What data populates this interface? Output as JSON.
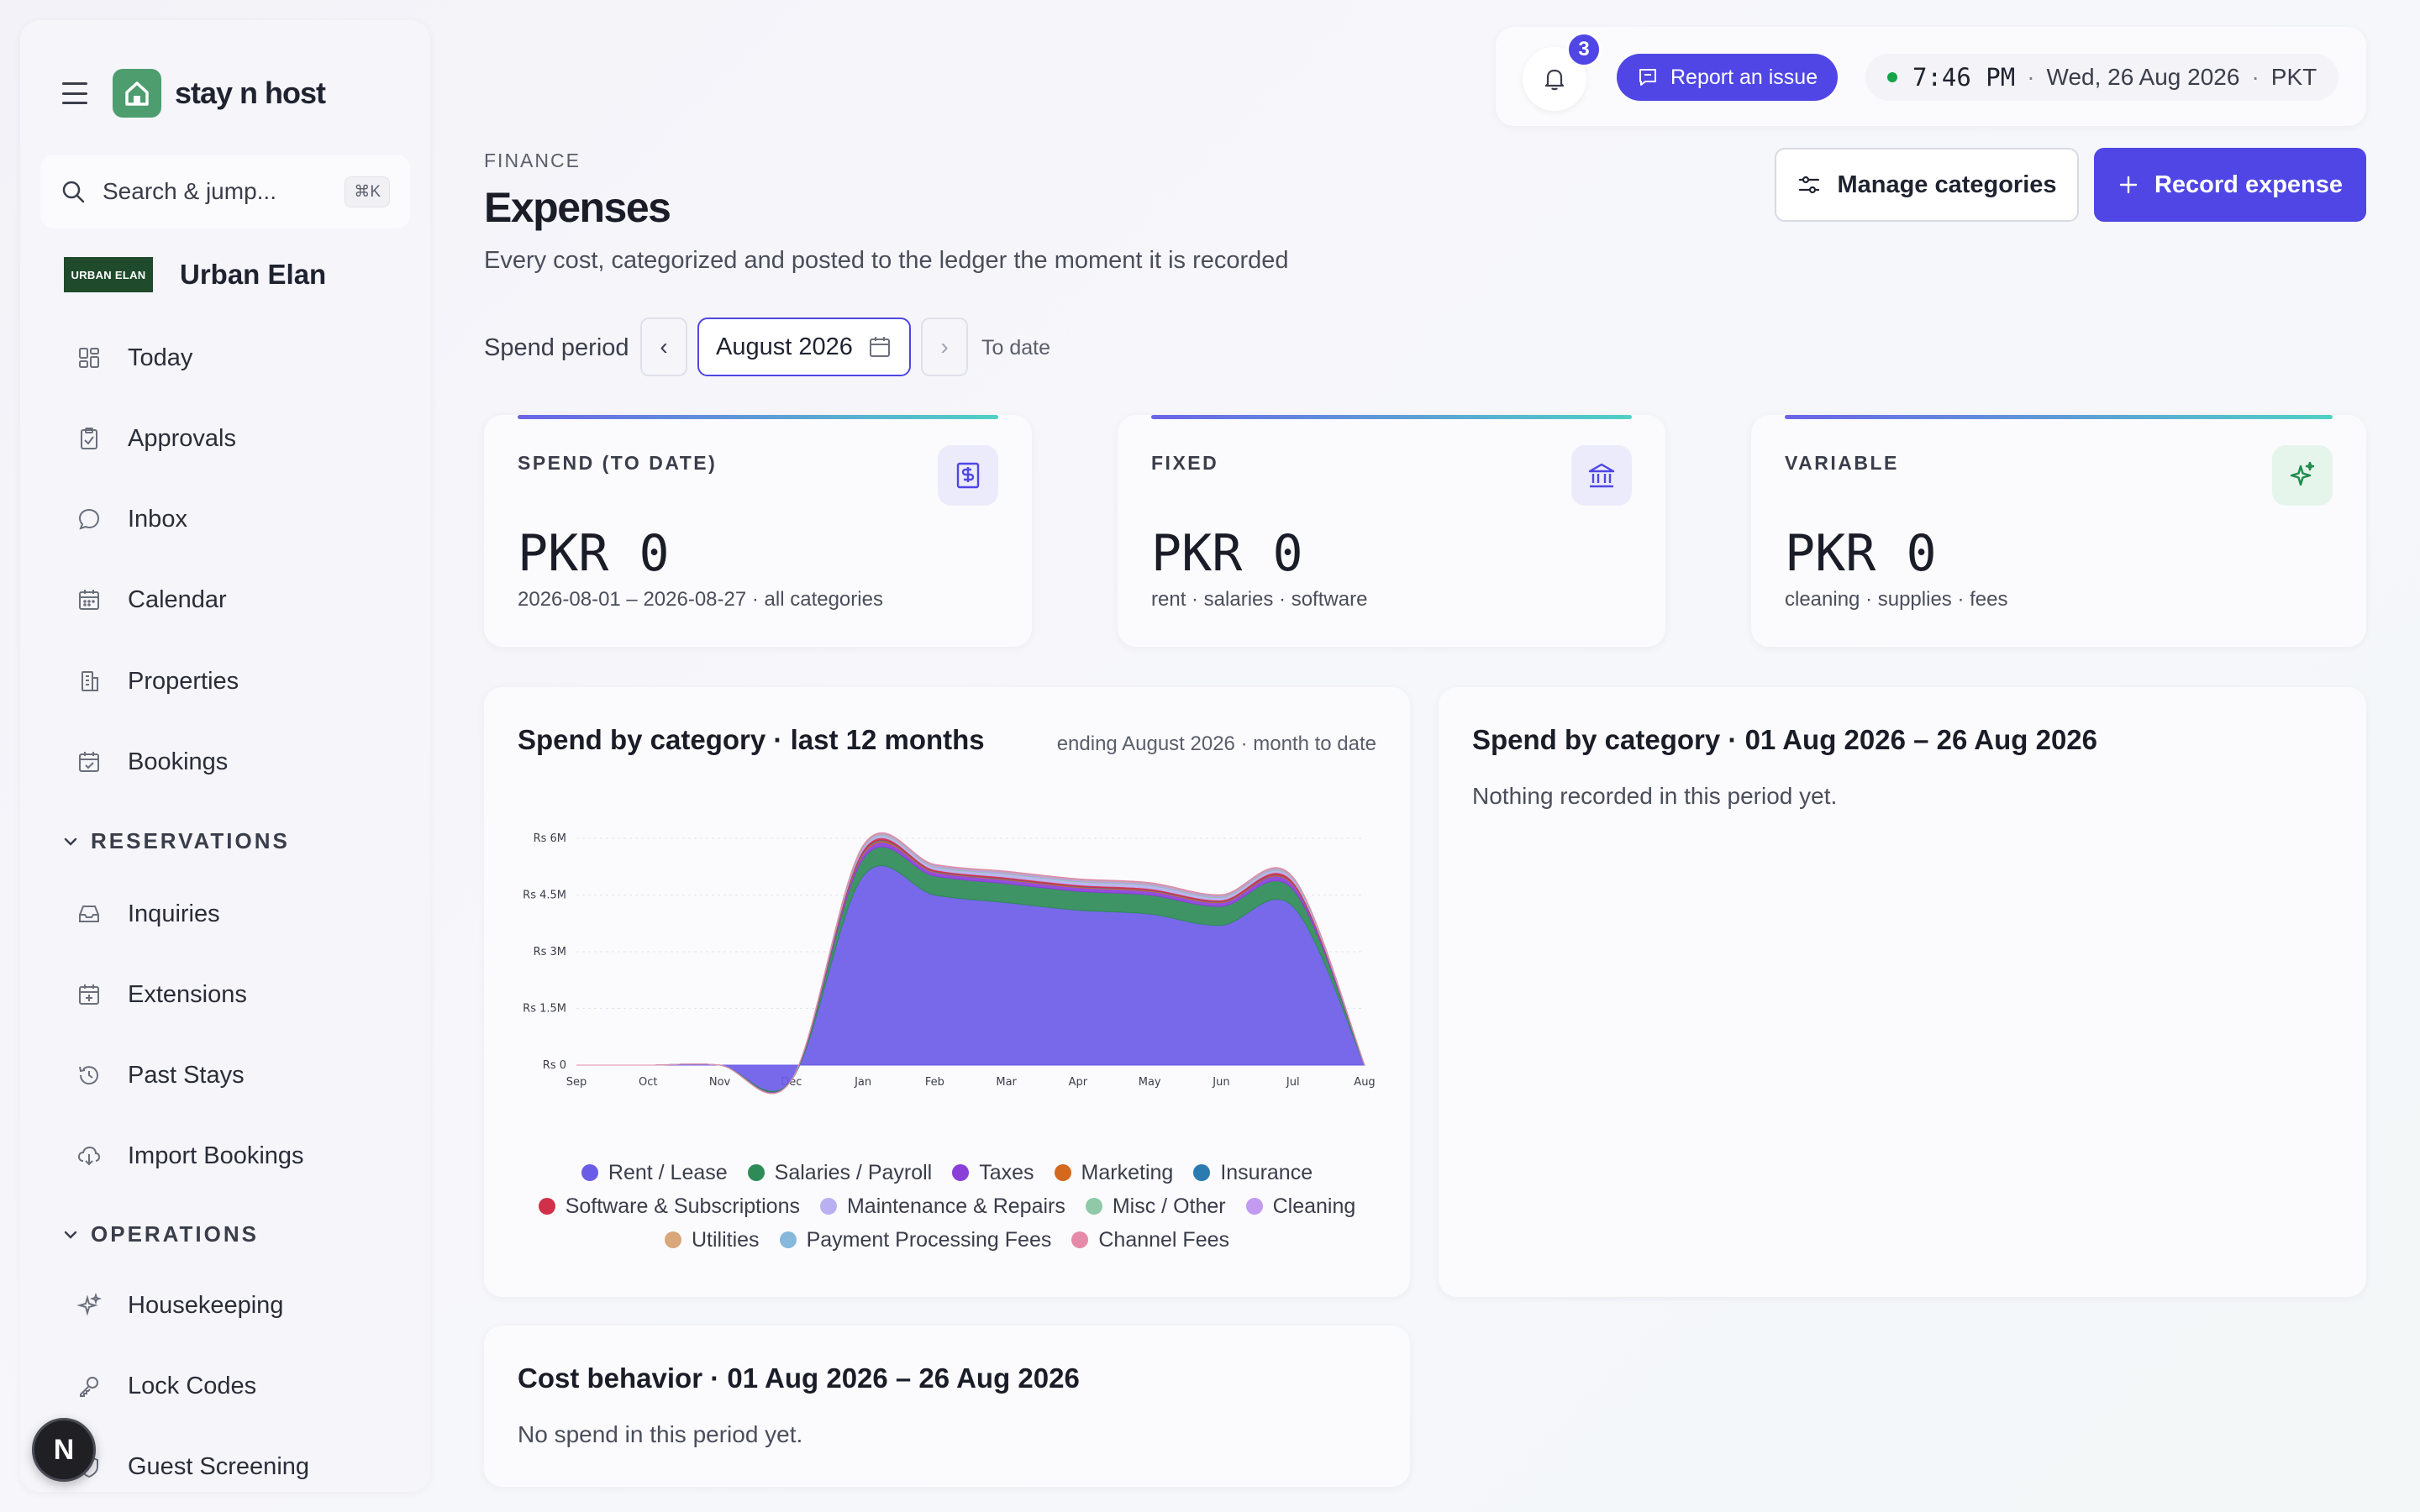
{
  "sidebar": {
    "brand": "stay n host",
    "search": {
      "label": "Search & jump...",
      "shortcut": "⌘K"
    },
    "org": {
      "badge": "URBAN ELAN",
      "name": "Urban Elan"
    },
    "items": [
      {
        "label": "Today",
        "icon": "grid-icon"
      },
      {
        "label": "Approvals",
        "icon": "clipboard-check-icon"
      },
      {
        "label": "Inbox",
        "icon": "chat-bubble-icon"
      },
      {
        "label": "Calendar",
        "icon": "calendar-icon"
      },
      {
        "label": "Properties",
        "icon": "building-icon"
      },
      {
        "label": "Bookings",
        "icon": "calendar-check-icon"
      }
    ],
    "reservations_title": "RESERVATIONS",
    "reservations": [
      {
        "label": "Inquiries",
        "icon": "inbox-tray-icon"
      },
      {
        "label": "Extensions",
        "icon": "calendar-plus-icon"
      },
      {
        "label": "Past Stays",
        "icon": "history-icon"
      },
      {
        "label": "Import Bookings",
        "icon": "cloud-download-icon"
      }
    ],
    "operations_title": "OPERATIONS",
    "operations": [
      {
        "label": "Housekeeping",
        "icon": "sparkles-icon"
      },
      {
        "label": "Lock Codes",
        "icon": "key-icon"
      },
      {
        "label": "Guest Screening",
        "icon": "shield-icon"
      }
    ],
    "bubble": "N"
  },
  "topbar": {
    "notifications": "3",
    "report": "Report an issue",
    "time": "7:46 PM",
    "date": "Wed, 26 Aug 2026",
    "tz": "PKT",
    "sep": "·"
  },
  "header": {
    "eyebrow": "FINANCE",
    "title": "Expenses",
    "subtitle": "Every cost, categorized and posted to the ledger the moment it is recorded",
    "manage": "Manage categories",
    "record": "Record expense"
  },
  "period": {
    "label": "Spend period",
    "value": "August 2026",
    "prev": "‹",
    "next": "›",
    "to_date": "To date"
  },
  "kpis": [
    {
      "label": "SPEND (TO DATE)",
      "value": "PKR 0",
      "sub": "2026-08-01 – 2026-08-27 · all categories",
      "icon": "receipt-dollar-icon"
    },
    {
      "label": "FIXED",
      "value": "PKR 0",
      "sub": "rent · salaries · software",
      "icon": "bank-icon"
    },
    {
      "label": "VARIABLE",
      "value": "PKR 0",
      "sub": "cleaning · supplies · fees",
      "icon": "sparkle-icon"
    }
  ],
  "colors": {
    "accent": "#4f46e5",
    "rent": "#6b5ce7",
    "salaries": "#2e8b57",
    "taxes": "#8b3fd9",
    "marketing": "#d2691e",
    "insurance": "#2b7bb0",
    "software": "#d1304a",
    "maintenance": "#b8b0f0",
    "misc": "#8fc9a8",
    "cleaning": "#c29af0",
    "utilities": "#d9a77a",
    "payment": "#86b8dc",
    "channel": "#e58aa8"
  },
  "chart_card": {
    "title": "Spend by category · last 12 months",
    "meta": "ending August 2026 · month to date"
  },
  "chart_data": {
    "type": "area",
    "stacked": true,
    "x": [
      "Sep",
      "Oct",
      "Nov",
      "Dec",
      "Jan",
      "Feb",
      "Mar",
      "Apr",
      "May",
      "Jun",
      "Jul",
      "Aug"
    ],
    "y_ticks": [
      "Rs 0",
      "Rs 1.5M",
      "Rs 3M",
      "Rs 4.5M",
      "Rs 6M"
    ],
    "ylim": [
      0,
      6000000
    ],
    "grid": true,
    "legend_position": "bottom",
    "series": [
      {
        "name": "Rent / Lease",
        "color": "#6b5ce7",
        "values": [
          0,
          0,
          0,
          -400000,
          5000000,
          4500000,
          4300000,
          4100000,
          4000000,
          3700000,
          4200000,
          0
        ]
      },
      {
        "name": "Salaries / Payroll",
        "color": "#2e8b57",
        "values": [
          0,
          0,
          0,
          0,
          450000,
          500000,
          500000,
          500000,
          500000,
          500000,
          450000,
          0
        ]
      },
      {
        "name": "Taxes",
        "color": "#8b3fd9",
        "values": [
          0,
          0,
          0,
          0,
          120000,
          100000,
          100000,
          100000,
          100000,
          100000,
          120000,
          0
        ]
      },
      {
        "name": "Marketing",
        "color": "#d2691e",
        "values": [
          0,
          0,
          0,
          0,
          40000,
          20000,
          20000,
          20000,
          20000,
          20000,
          20000,
          0
        ]
      },
      {
        "name": "Insurance",
        "color": "#2b7bb0",
        "values": [
          0,
          0,
          0,
          0,
          20000,
          10000,
          10000,
          10000,
          10000,
          10000,
          10000,
          0
        ]
      },
      {
        "name": "Software & Subscriptions",
        "color": "#d1304a",
        "values": [
          0,
          0,
          0,
          0,
          60000,
          40000,
          40000,
          40000,
          40000,
          40000,
          60000,
          0
        ]
      },
      {
        "name": "Maintenance & Repairs",
        "color": "#b8b0f0",
        "values": [
          0,
          0,
          0,
          0,
          50000,
          60000,
          80000,
          80000,
          80000,
          60000,
          50000,
          0
        ]
      },
      {
        "name": "Misc / Other",
        "color": "#8fc9a8",
        "values": [
          0,
          0,
          0,
          0,
          20000,
          20000,
          20000,
          20000,
          20000,
          20000,
          20000,
          0
        ]
      },
      {
        "name": "Cleaning",
        "color": "#c29af0",
        "values": [
          0,
          0,
          0,
          0,
          20000,
          30000,
          30000,
          30000,
          30000,
          30000,
          20000,
          0
        ]
      },
      {
        "name": "Utilities",
        "color": "#d9a77a",
        "values": [
          0,
          0,
          0,
          0,
          10000,
          10000,
          10000,
          10000,
          10000,
          10000,
          10000,
          0
        ]
      },
      {
        "name": "Payment Processing Fees",
        "color": "#86b8dc",
        "values": [
          0,
          0,
          0,
          0,
          10000,
          10000,
          10000,
          10000,
          10000,
          10000,
          10000,
          0
        ]
      },
      {
        "name": "Channel Fees",
        "color": "#e58aa8",
        "values": [
          0,
          0,
          0,
          0,
          10000,
          10000,
          10000,
          10000,
          10000,
          10000,
          10000,
          0
        ]
      }
    ]
  },
  "period_card": {
    "title": "Spend by category · 01 Aug 2026 – 26 Aug 2026",
    "empty": "Nothing recorded in this period yet."
  },
  "behavior_card": {
    "title": "Cost behavior · 01 Aug 2026 – 26 Aug 2026",
    "empty": "No spend in this period yet."
  }
}
